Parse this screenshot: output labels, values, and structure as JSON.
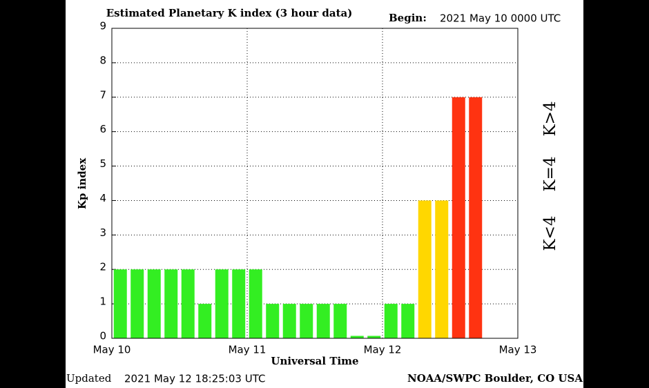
{
  "chart_data": {
    "type": "bar",
    "title": "Estimated Planetary K index (3 hour data)",
    "begin_label": "Begin:",
    "begin": "2021 May 10 0000 UTC",
    "updated_label": "Updated",
    "updated": "2021 May 12 18:25:03 UTC",
    "credit": "NOAA/SWPC Boulder, CO USA",
    "xlabel": "Universal Time",
    "ylabel": "Kp index",
    "categories": [
      null,
      null,
      null,
      null,
      null,
      null,
      null,
      null,
      null,
      null,
      null,
      null,
      null,
      null,
      null,
      null,
      null,
      null,
      null,
      null,
      null,
      null
    ],
    "values": [
      2,
      2,
      2,
      2,
      2,
      1,
      2,
      2,
      2,
      1,
      1,
      1,
      1,
      1,
      0.07,
      0.07,
      1,
      1,
      4,
      4,
      7,
      7
    ],
    "colors": [
      "#33ee22",
      "#33ee22",
      "#33ee22",
      "#33ee22",
      "#33ee22",
      "#33ee22",
      "#33ee22",
      "#33ee22",
      "#33ee22",
      "#33ee22",
      "#33ee22",
      "#33ee22",
      "#33ee22",
      "#33ee22",
      "#33ee22",
      "#33ee22",
      "#33ee22",
      "#33ee22",
      "#ffd700",
      "#ffd700",
      "#ff3311",
      "#ff3311"
    ],
    "x_tick_labels": [
      "May 10",
      "May 11",
      "May 12",
      "May 13"
    ],
    "ylim": [
      0,
      9
    ],
    "yticks": [
      0,
      1,
      2,
      3,
      4,
      5,
      6,
      7,
      8,
      9
    ],
    "grid": true,
    "legend": [
      {
        "label": "K<4",
        "color": "#33ee22"
      },
      {
        "label": "K=4",
        "color": "#ffd700"
      },
      {
        "label": "K>4",
        "color": "#ff3311"
      }
    ]
  }
}
